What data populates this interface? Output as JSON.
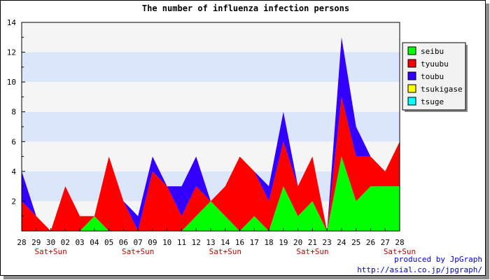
{
  "chart_data": {
    "type": "area",
    "stacked": true,
    "title": "The number of influenza infection persons",
    "xlabel": "",
    "ylabel": "",
    "categories": [
      "28",
      "29",
      "30",
      "02",
      "03",
      "04",
      "05",
      "06",
      "07",
      "09",
      "10",
      "11",
      "12",
      "13",
      "14",
      "16",
      "17",
      "18",
      "19",
      "20",
      "21",
      "23",
      "24",
      "25",
      "26",
      "27",
      "28"
    ],
    "weekend_labels": [
      {
        "index": 2,
        "text": "Sat+Sun"
      },
      {
        "index": 8,
        "text": "Sat+Sun"
      },
      {
        "index": 14,
        "text": "Sat+Sun"
      },
      {
        "index": 20,
        "text": "Sat+Sun"
      },
      {
        "index": 26,
        "text": "Sat+Sun"
      }
    ],
    "ylim": [
      0,
      14
    ],
    "yticks": [
      2,
      4,
      6,
      8,
      10,
      12,
      14
    ],
    "series": [
      {
        "name": "seibu",
        "color": "#00ff00",
        "values": [
          0,
          0,
          0,
          0,
          0,
          1,
          0,
          0,
          0,
          0,
          0,
          0,
          1,
          2,
          1,
          0,
          1,
          0,
          3,
          1,
          2,
          0,
          5,
          2,
          3,
          3,
          3
        ]
      },
      {
        "name": "tyuubu",
        "color": "#ff0000",
        "values": [
          2,
          1,
          0,
          3,
          1,
          0,
          5,
          2,
          0,
          4,
          3,
          1,
          2,
          0,
          2,
          5,
          3,
          2,
          3,
          2,
          3,
          0,
          4,
          3,
          2,
          1,
          3
        ]
      },
      {
        "name": "toubu",
        "color": "#3300ff",
        "values": [
          2,
          0,
          0,
          0,
          0,
          0,
          0,
          0,
          1,
          1,
          0,
          2,
          2,
          0,
          0,
          0,
          0,
          1,
          2,
          0,
          0,
          0,
          4,
          2,
          0,
          0,
          0
        ]
      },
      {
        "name": "tsukigase",
        "color": "#ffff00",
        "values": [
          0,
          0,
          0,
          0,
          0,
          0,
          0,
          0,
          0,
          0,
          0,
          0,
          0,
          0,
          0,
          0,
          0,
          0,
          0,
          0,
          0,
          0,
          0,
          0,
          0,
          0,
          0
        ]
      },
      {
        "name": "tsuge",
        "color": "#00ffff",
        "values": [
          0,
          0,
          0,
          0,
          0,
          0,
          0,
          0,
          0,
          0,
          0,
          0,
          0,
          0,
          0,
          0,
          0,
          0,
          0,
          0,
          0,
          0,
          0,
          0,
          0,
          0,
          0
        ]
      }
    ],
    "grid": true,
    "legend_position": "right",
    "band_colors": [
      "#f5f5f5",
      "#dce6fa"
    ]
  },
  "credits": {
    "line1": "produced by JpGraph",
    "line2": "http://asial.co.jp/jpgraph/"
  }
}
